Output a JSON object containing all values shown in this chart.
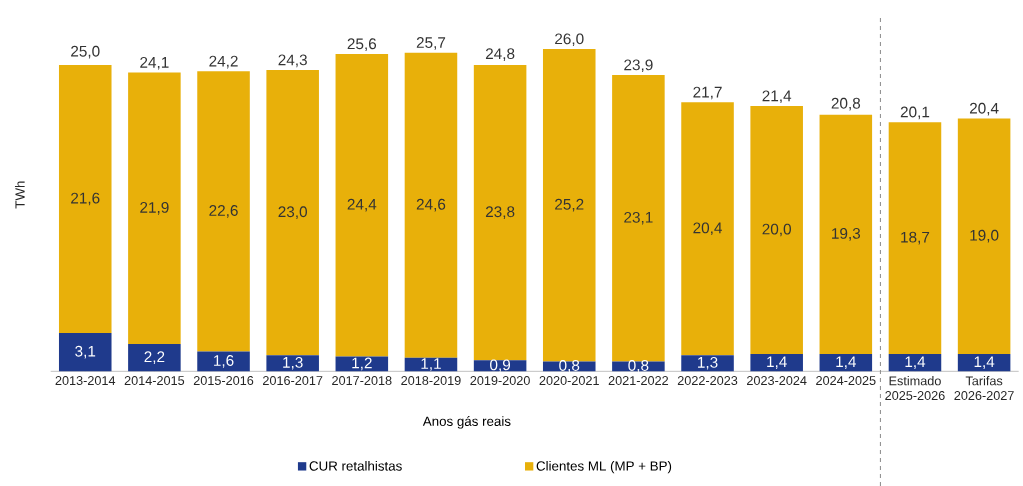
{
  "chart_data": {
    "type": "bar",
    "stacked": true,
    "xlabel": "Anos gás reais",
    "ylabel": "TWh",
    "categories": [
      "2013-2014",
      "2014-2015",
      "2015-2016",
      "2016-2017",
      "2017-2018",
      "2018-2019",
      "2019-2020",
      "2020-2021",
      "2021-2022",
      "2022-2023",
      "2023-2024",
      "2024-2025",
      "Estimado 2025-2026",
      "Tarifas 2026-2027"
    ],
    "series": [
      {
        "name": "CUR retalhistas",
        "color": "#1f3a8c",
        "values": [
          3.1,
          2.2,
          1.6,
          1.3,
          1.2,
          1.1,
          0.9,
          0.8,
          0.8,
          1.3,
          1.4,
          1.4,
          1.4,
          1.4
        ],
        "value_labels": [
          "3,1",
          "2,2",
          "1,6",
          "1,3",
          "1,2",
          "1,1",
          "0,9",
          "0,8",
          "0,8",
          "1,3",
          "1,4",
          "1,4",
          "1,4",
          "1,4"
        ]
      },
      {
        "name": "Clientes ML (MP + BP)",
        "color": "#e8b00a",
        "values": [
          21.6,
          21.9,
          22.6,
          23.0,
          24.4,
          24.6,
          23.8,
          25.2,
          23.1,
          20.4,
          20.0,
          19.3,
          18.7,
          19.0
        ],
        "value_labels": [
          "21,6",
          "21,9",
          "22,6",
          "23,0",
          "24,4",
          "24,6",
          "23,8",
          "25,2",
          "23,1",
          "20,4",
          "20,0",
          "19,3",
          "18,7",
          "19,0"
        ]
      }
    ],
    "annotations": [
      {
        "text": "25,0",
        "x": "2013-2014",
        "y": 25.0
      },
      {
        "text": "24,1",
        "x": "2014-2015",
        "y": 24.1
      },
      {
        "text": "24,2",
        "x": "2015-2016",
        "y": 24.2
      },
      {
        "text": "24,3",
        "x": "2016-2017",
        "y": 24.3
      },
      {
        "text": "25,6",
        "x": "2017-2018",
        "y": 25.6
      },
      {
        "text": "25,7",
        "x": "2018-2019",
        "y": 25.7
      },
      {
        "text": "24,8",
        "x": "2019-2020",
        "y": 24.8
      },
      {
        "text": "26,0",
        "x": "2020-2021",
        "y": 26.0
      },
      {
        "text": "23,9",
        "x": "2021-2022",
        "y": 23.9
      },
      {
        "text": "21,7",
        "x": "2022-2023",
        "y": 21.7
      },
      {
        "text": "21,4",
        "x": "2023-2024",
        "y": 21.4
      },
      {
        "text": "20,8",
        "x": "2024-2025",
        "y": 20.8
      },
      {
        "text": "20,1",
        "x": "Estimado 2025-2026",
        "y": 20.1
      },
      {
        "text": "20,4",
        "x": "Tarifas 2026-2027",
        "y": 20.4
      }
    ],
    "ylim": [
      0,
      28.5
    ],
    "legend": "bottom"
  }
}
